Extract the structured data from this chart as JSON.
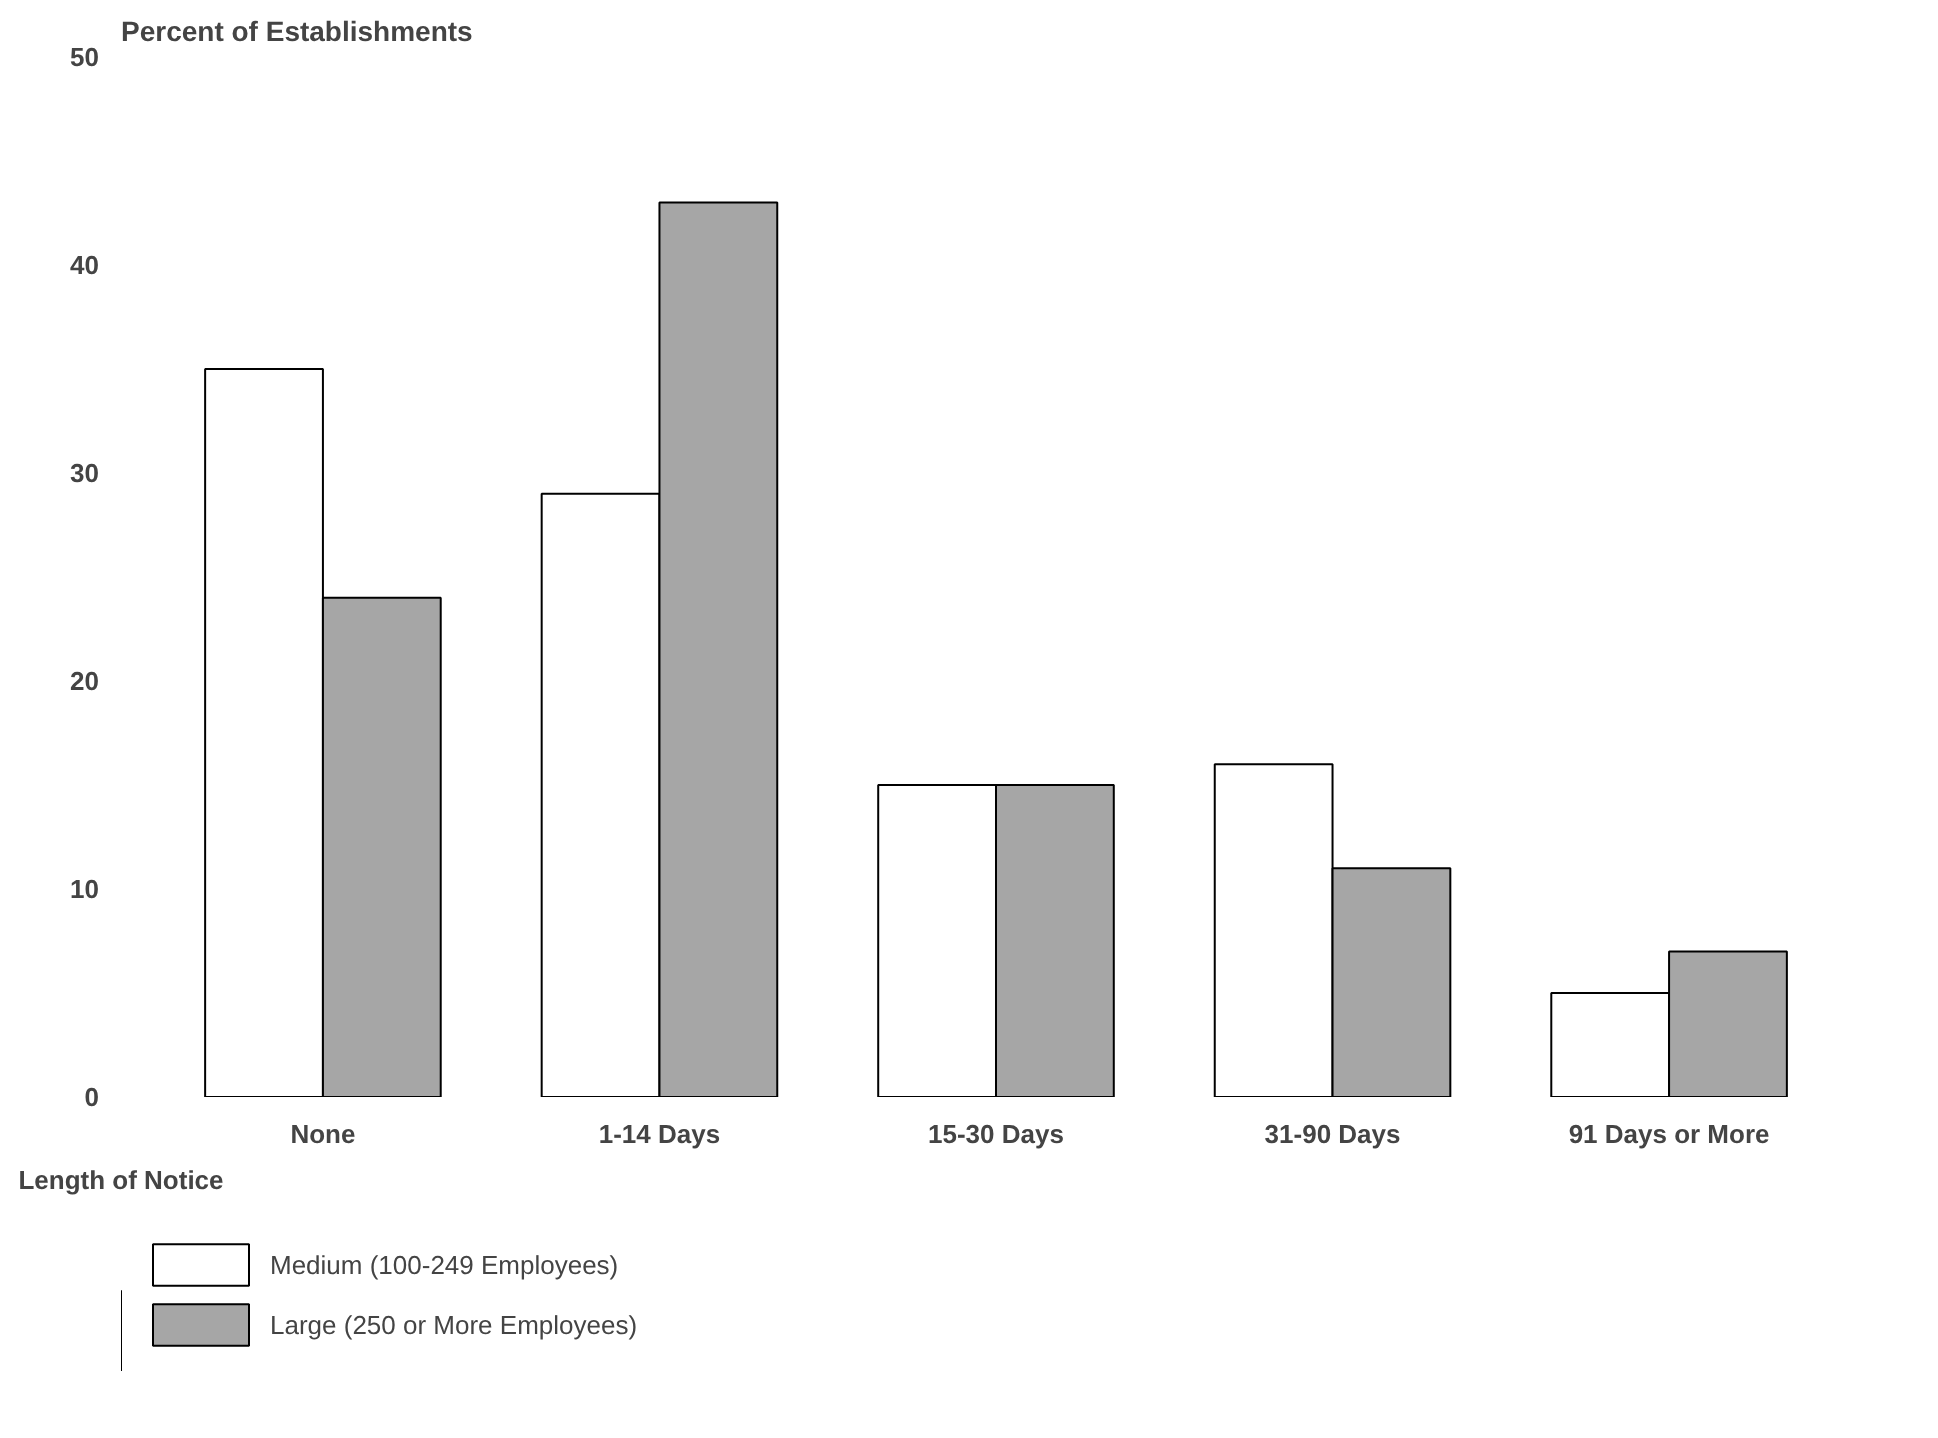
{
  "chart_data": {
    "type": "bar",
    "ylabel": "Percent of Establishments",
    "xlabel": "Length of Notice",
    "categories": [
      "None",
      "1-14 Days",
      "15-30 Days",
      "31-90 Days",
      "91 Days or More"
    ],
    "series": [
      {
        "name": "Medium (100-249 Employees)",
        "color": "#ffffff",
        "values": [
          35,
          29,
          15,
          16,
          5
        ]
      },
      {
        "name": "Large (250 or More Employees)",
        "color": "#a6a6a6",
        "values": [
          24,
          43,
          15,
          11,
          7
        ]
      }
    ],
    "ylim": [
      0,
      50
    ],
    "yticks": [
      0,
      10,
      20,
      30,
      40,
      50
    ],
    "grid": false,
    "legend": "bottom left"
  }
}
